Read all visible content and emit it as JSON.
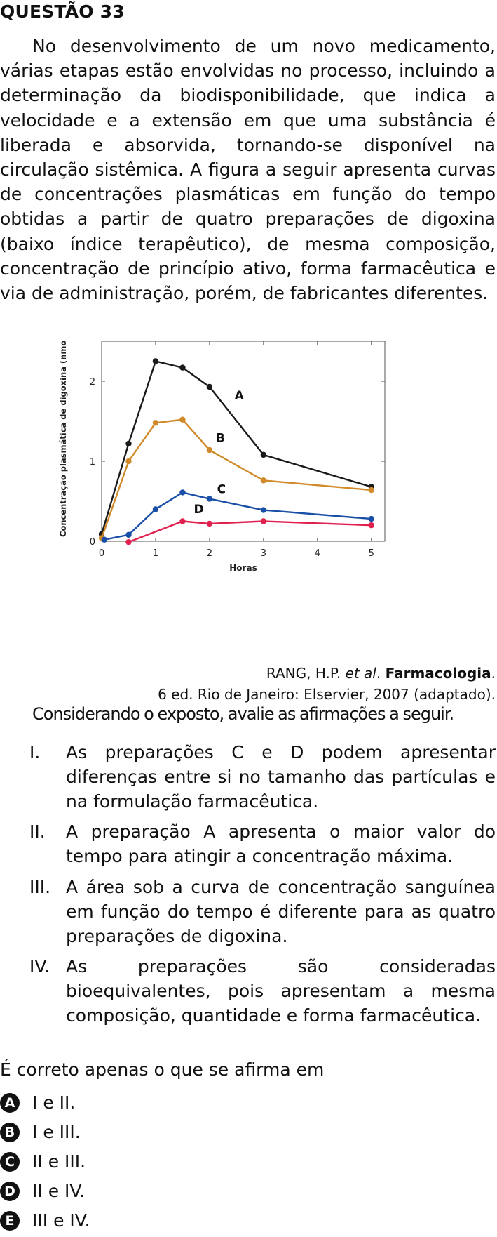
{
  "question": {
    "title": "QUESTÃO 33",
    "intro": "No desenvolvimento de um novo medicamento, várias etapas estão envolvidas no processo, incluindo a determinação da biodisponibilidade, que indica a velocidade e a extensão em que uma substância é liberada e absorvida, tornando-se disponível na circulação sistêmica. A figura a seguir apresenta curvas de concentrações plasmáticas em função do tempo obtidas a partir de quatro preparações de digoxina (baixo índice terapêutico), de mesma composição, concentração de princípio ativo, forma farmacêutica e via de administração, porém, de fabricantes diferentes.",
    "source_authors": "RANG, H.P. ",
    "source_etal": "et al",
    "source_dot": ". ",
    "source_book": "Farmacologia",
    "source_end": ".",
    "source_line2": "6 ed. Rio de Janeiro: Elservier, 2007 (adaptado).",
    "prompt": "Considerando o exposto, avalie as afirmações a seguir.",
    "statements": [
      {
        "num": "I.",
        "text": "As preparações C e D podem apresentar diferenças entre si no tamanho das partículas e na formulação farmacêutica."
      },
      {
        "num": "II.",
        "text": "A preparação A apresenta o maior valor do tempo para atingir a concentração máxima."
      },
      {
        "num": "III.",
        "text": "A área sob a curva de concentração sanguínea em função do tempo é diferente para as quatro preparações de digoxina."
      },
      {
        "num": "IV.",
        "text": "As preparações são consideradas bioequivalentes, pois apresentam a mesma composição, quantidade e forma farmacêutica."
      }
    ],
    "question_text": "É correto apenas o que se afirma em",
    "options": [
      {
        "letter": "A",
        "text": "I e II."
      },
      {
        "letter": "B",
        "text": "I e III."
      },
      {
        "letter": "C",
        "text": "II e III."
      },
      {
        "letter": "D",
        "text": "II e IV."
      },
      {
        "letter": "E",
        "text": "III e IV."
      }
    ]
  },
  "chart_data": {
    "type": "line",
    "xlabel": "Horas",
    "ylabel": "Concentração plasmática de digoxina (nmol/L)",
    "xlim": [
      0,
      5.25
    ],
    "ylim": [
      0,
      2.5
    ],
    "xticks": [
      "0",
      "1",
      "2",
      "3",
      "4",
      "5"
    ],
    "yticks": [
      "0",
      "1",
      "2"
    ],
    "grid": false,
    "series": [
      {
        "name": "A",
        "color": "#1a1a1a",
        "points": [
          [
            0,
            0.09
          ],
          [
            0.5,
            1.22
          ],
          [
            1,
            2.25
          ],
          [
            1.5,
            2.17
          ],
          [
            2,
            1.93
          ],
          [
            3,
            1.08
          ],
          [
            5,
            0.68
          ]
        ]
      },
      {
        "name": "B",
        "color": "#d08a2a",
        "points": [
          [
            0,
            0.04
          ],
          [
            0.5,
            1.0
          ],
          [
            1,
            1.48
          ],
          [
            1.5,
            1.52
          ],
          [
            2,
            1.14
          ],
          [
            3,
            0.76
          ],
          [
            5,
            0.64
          ]
        ]
      },
      {
        "name": "C",
        "color": "#1a4fa8",
        "points": [
          [
            0.05,
            0.02
          ],
          [
            0.5,
            0.08
          ],
          [
            1,
            0.4
          ],
          [
            1.5,
            0.61
          ],
          [
            2,
            0.53
          ],
          [
            3,
            0.39
          ],
          [
            5,
            0.28
          ]
        ]
      },
      {
        "name": "D",
        "color": "#e0204f",
        "points": [
          [
            0.5,
            -0.01
          ],
          [
            1.5,
            0.25
          ],
          [
            2,
            0.22
          ],
          [
            3,
            0.25
          ],
          [
            5,
            0.2
          ]
        ]
      }
    ],
    "series_labels": [
      {
        "name": "A",
        "x": 2.55,
        "y": 1.77
      },
      {
        "name": "B",
        "x": 2.2,
        "y": 1.24
      },
      {
        "name": "C",
        "x": 2.22,
        "y": 0.6
      },
      {
        "name": "D",
        "x": 1.8,
        "y": 0.35
      }
    ]
  }
}
